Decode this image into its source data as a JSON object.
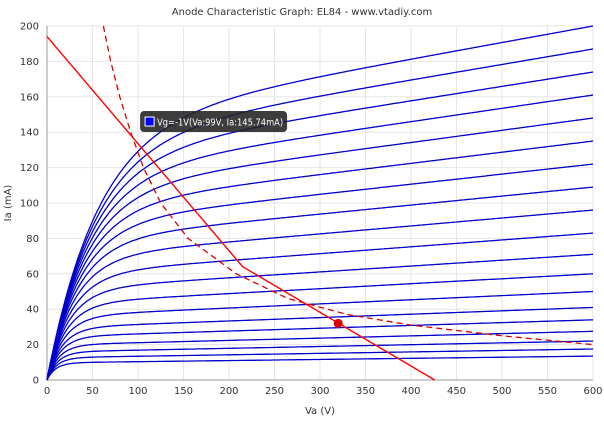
{
  "chart_data": {
    "type": "line",
    "title": "Anode Characteristic Graph: EL84 - www.vtadiy.com",
    "xlabel": "Va (V)",
    "ylabel": "Ia (mA)",
    "xlim": [
      0,
      600
    ],
    "ylim": [
      0,
      200
    ],
    "x_ticks": [
      "0",
      "50",
      "100",
      "150",
      "200",
      "250",
      "300",
      "350",
      "400",
      "450",
      "500",
      "550",
      "600"
    ],
    "y_ticks": [
      "0",
      "20",
      "40",
      "60",
      "80",
      "100",
      "120",
      "140",
      "160",
      "180",
      "200"
    ],
    "grid": true,
    "colors": {
      "curves": "#0000cc",
      "load_line": "#ff0000",
      "dissipation": "#dd0000",
      "operating_point": "#dd0000",
      "grid": "#e6e6e6",
      "axis": "#999999"
    },
    "curves": {
      "description": "family of anode characteristic curves Ia(Va) for successive grid voltages",
      "current_at_600V_mA": [
        200,
        187,
        174,
        161,
        148,
        135,
        122,
        109,
        96,
        83,
        71,
        60,
        50,
        41,
        34,
        27.5,
        22,
        17.5,
        13.5
      ]
    },
    "load_line": {
      "points": [
        [
          0,
          194
        ],
        [
          215,
          64
        ],
        [
          426,
          0
        ]
      ]
    },
    "dissipation_curve": {
      "points": [
        [
          62,
          200
        ],
        [
          70,
          180
        ],
        [
          80,
          160
        ],
        [
          92,
          140
        ],
        [
          106,
          120
        ],
        [
          125,
          100
        ],
        [
          155,
          80
        ],
        [
          208,
          60
        ],
        [
          265,
          46
        ],
        [
          330,
          37
        ],
        [
          400,
          31
        ],
        [
          500,
          25
        ],
        [
          600,
          20
        ]
      ]
    },
    "operating_point": {
      "x": 320,
      "y": 32
    },
    "tooltip": {
      "text": "Vg=-1V(Va:99V, Ia:145.74mA)",
      "x": 99,
      "y": 145.74,
      "swatch_color": "#0000ff"
    }
  }
}
